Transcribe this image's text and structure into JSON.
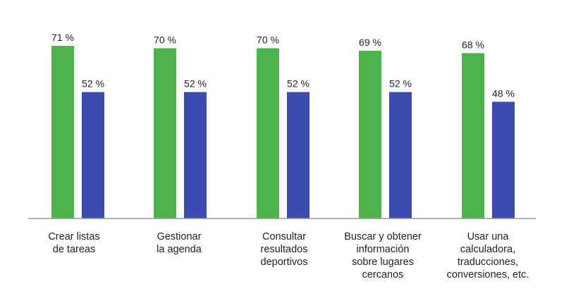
{
  "chart_data": {
    "type": "bar",
    "categories": [
      [
        "Crear listas",
        "de tareas"
      ],
      [
        "Gestionar",
        "la agenda"
      ],
      [
        "Consultar",
        "resultados",
        "deportivos"
      ],
      [
        "Buscar y obtener",
        "información",
        "sobre lugares",
        "cercanos"
      ],
      [
        "Usar una",
        "calculadora,",
        "traducciones,",
        "conversiones, etc."
      ]
    ],
    "series": [
      {
        "color": "#4db34d",
        "values": [
          71,
          70,
          70,
          69,
          68
        ],
        "labels": [
          "71 %",
          "70 %",
          "70 %",
          "69 %",
          "68 %"
        ]
      },
      {
        "color": "#3a4aae",
        "values": [
          52,
          52,
          52,
          52,
          48
        ],
        "labels": [
          "52 %",
          "52 %",
          "52 %",
          "52 %",
          "48 %"
        ]
      }
    ],
    "ylim": [
      0,
      100
    ],
    "grid": false,
    "legend": "none",
    "axis_color": "#999999"
  }
}
